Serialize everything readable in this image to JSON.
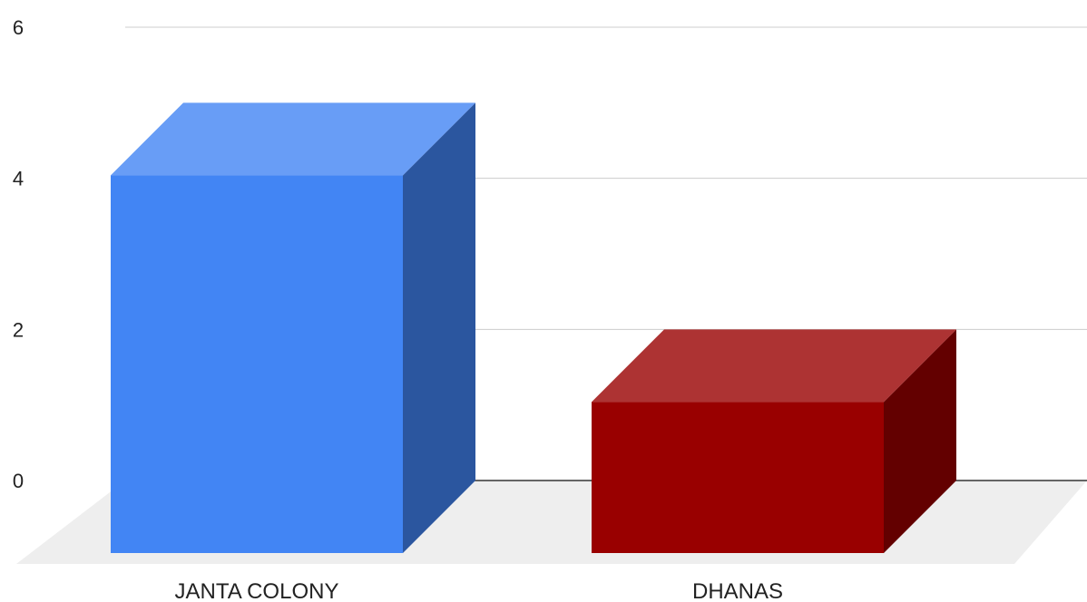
{
  "chart_data": {
    "type": "bar",
    "title": "",
    "xlabel": "",
    "ylabel": "",
    "categories": [
      "JANTA COLONY",
      "DHANAS"
    ],
    "values": [
      5,
      2
    ],
    "ylim": [
      0,
      6
    ],
    "yticks": [
      0,
      2,
      4,
      6
    ],
    "colors": [
      "#4285f4",
      "#990000"
    ],
    "grid": true,
    "legend": "none",
    "style": "3d"
  }
}
